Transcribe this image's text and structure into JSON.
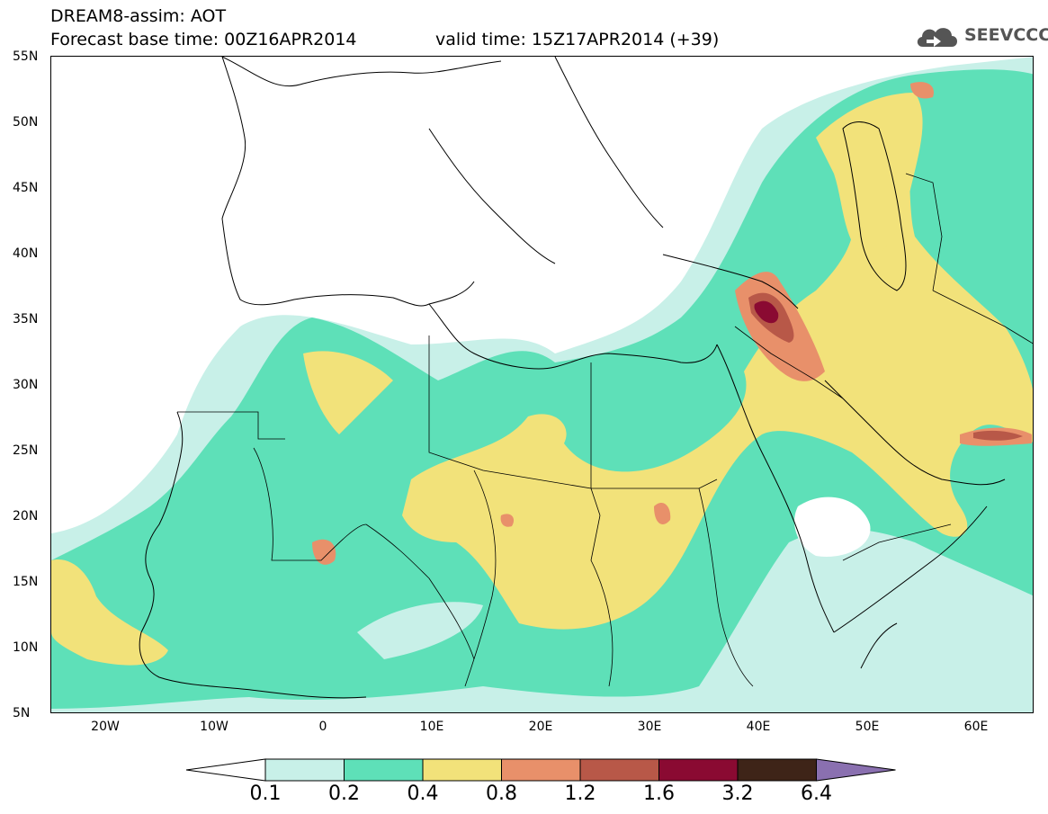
{
  "header": {
    "line1": "DREAM8-assim: AOT",
    "line2": "Forecast base time: 00Z16APR2014",
    "valid": "valid time: 15Z17APR2014 (+39)",
    "logo_text": "SEEVCCC"
  },
  "map": {
    "lat_labels": [
      "55N",
      "50N",
      "45N",
      "40N",
      "35N",
      "30N",
      "25N",
      "20N",
      "15N",
      "10N",
      "5N"
    ],
    "lon_labels": [
      "20W",
      "10W",
      "0",
      "10E",
      "20E",
      "30E",
      "40E",
      "50E",
      "60E"
    ],
    "lat_range": [
      5,
      55
    ],
    "lon_range": [
      -25,
      65
    ],
    "variable": "AOT"
  },
  "legend": {
    "labels": [
      "0.1",
      "0.2",
      "0.4",
      "0.8",
      "1.2",
      "1.6",
      "3.2",
      "6.4"
    ],
    "colors": [
      "#c8f0e8",
      "#5ee0b8",
      "#f2e27a",
      "#e8906a",
      "#b85848",
      "#8a0a32",
      "#3e2418",
      "#8a70b0"
    ]
  }
}
